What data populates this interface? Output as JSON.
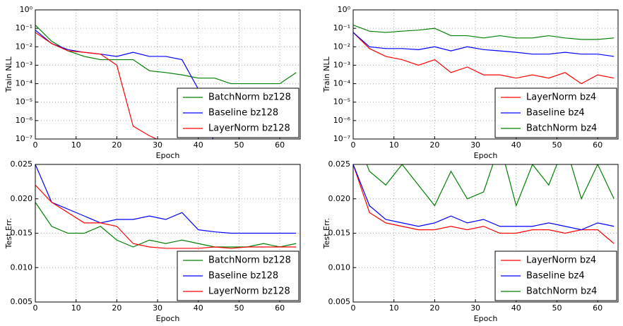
{
  "chart_data": [
    {
      "type": "line",
      "log": true,
      "grid": true,
      "legend": "lower right",
      "xlabel": "Epoch",
      "ylabel": "Train NLL",
      "xlim": [
        0,
        65
      ],
      "xticks": [
        0,
        10,
        20,
        30,
        40,
        50,
        60
      ],
      "ylim": [
        1e-07,
        1
      ],
      "yticks": [
        {
          "value": 1e-07,
          "label": "10⁻⁷"
        },
        {
          "value": 1e-06,
          "label": "10⁻⁶"
        },
        {
          "value": 1e-05,
          "label": "10⁻⁵"
        },
        {
          "value": 0.0001,
          "label": "10⁻⁴"
        },
        {
          "value": 0.001,
          "label": "10⁻³"
        },
        {
          "value": 0.01,
          "label": "10⁻²"
        },
        {
          "value": 0.1,
          "label": "10⁻¹"
        },
        {
          "value": 1,
          "label": "10⁰"
        }
      ],
      "x": [
        0,
        4,
        8,
        12,
        16,
        20,
        24,
        28,
        32,
        36,
        40,
        44,
        48,
        52,
        56,
        60,
        64
      ],
      "series": [
        {
          "name": "BatchNorm bz128",
          "color": "#008000",
          "values": [
            0.15,
            0.02,
            0.006,
            0.003,
            0.002,
            0.002,
            0.002,
            0.0005,
            0.0004,
            0.0003,
            0.0002,
            0.0002,
            0.0001,
            0.0001,
            0.0001,
            0.0001,
            0.0004
          ]
        },
        {
          "name": "Baseline bz128",
          "color": "#0000ff",
          "values": [
            0.08,
            0.015,
            0.007,
            0.005,
            0.004,
            0.003,
            0.005,
            0.003,
            0.003,
            0.002,
            5e-05,
            5e-08,
            null,
            null,
            null,
            null,
            null
          ]
        },
        {
          "name": "LayerNorm bz128",
          "color": "#ff0000",
          "values": [
            0.06,
            0.015,
            0.006,
            0.005,
            0.004,
            0.001,
            5e-07,
            1.5e-07,
            6e-08,
            null,
            null,
            null,
            null,
            null,
            null,
            null,
            null
          ]
        }
      ]
    },
    {
      "type": "line",
      "log": true,
      "grid": true,
      "legend": "lower right",
      "xlabel": "Epoch",
      "ylabel": "Train NLL",
      "xlim": [
        0,
        65
      ],
      "xticks": [
        0,
        10,
        20,
        30,
        40,
        50,
        60
      ],
      "ylim": [
        1e-07,
        1
      ],
      "yticks": [
        {
          "value": 1e-07,
          "label": "10⁻⁷"
        },
        {
          "value": 1e-06,
          "label": "10⁻⁶"
        },
        {
          "value": 1e-05,
          "label": "10⁻⁵"
        },
        {
          "value": 0.0001,
          "label": "10⁻⁴"
        },
        {
          "value": 0.001,
          "label": "10⁻³"
        },
        {
          "value": 0.01,
          "label": "10⁻²"
        },
        {
          "value": 0.1,
          "label": "10⁻¹"
        },
        {
          "value": 1,
          "label": "10⁰"
        }
      ],
      "x": [
        0,
        4,
        8,
        12,
        16,
        20,
        24,
        28,
        32,
        36,
        40,
        44,
        48,
        52,
        56,
        60,
        64
      ],
      "series": [
        {
          "name": "LayerNorm bz4",
          "color": "#ff0000",
          "values": [
            0.06,
            0.008,
            0.003,
            0.002,
            0.001,
            0.002,
            0.0004,
            0.0008,
            0.0003,
            0.0003,
            0.0002,
            0.0003,
            0.0002,
            0.0004,
            0.0001,
            0.0003,
            0.0002
          ]
        },
        {
          "name": "Baseline bz4",
          "color": "#0000ff",
          "values": [
            0.06,
            0.01,
            0.008,
            0.008,
            0.007,
            0.01,
            0.006,
            0.01,
            0.007,
            0.006,
            0.005,
            0.004,
            0.004,
            0.005,
            0.004,
            0.004,
            0.003
          ]
        },
        {
          "name": "BatchNorm bz4",
          "color": "#008000",
          "values": [
            0.15,
            0.07,
            0.06,
            0.07,
            0.08,
            0.1,
            0.04,
            0.04,
            0.03,
            0.04,
            0.03,
            0.03,
            0.04,
            0.03,
            0.025,
            0.025,
            0.03
          ]
        }
      ]
    },
    {
      "type": "line",
      "log": false,
      "grid": true,
      "legend": "lower right",
      "xlabel": "Epoch",
      "ylabel": "Test Err.",
      "xlim": [
        0,
        65
      ],
      "xticks": [
        0,
        10,
        20,
        30,
        40,
        50,
        60
      ],
      "ylim": [
        0.005,
        0.025
      ],
      "yticks": [
        0.005,
        {
          "value": 0.01,
          "label": "0.010"
        },
        0.015,
        {
          "value": 0.02,
          "label": "0.020"
        },
        0.025
      ],
      "x": [
        0,
        4,
        8,
        12,
        16,
        20,
        24,
        28,
        32,
        36,
        40,
        44,
        48,
        52,
        56,
        60,
        64
      ],
      "series": [
        {
          "name": "BatchNorm bz128",
          "color": "#008000",
          "values": [
            0.0195,
            0.016,
            0.015,
            0.015,
            0.016,
            0.014,
            0.013,
            0.014,
            0.0135,
            0.014,
            0.0135,
            0.013,
            0.013,
            0.013,
            0.0135,
            0.013,
            0.0135
          ]
        },
        {
          "name": "Baseline bz128",
          "color": "#0000ff",
          "values": [
            0.025,
            0.0195,
            0.0185,
            0.0175,
            0.0165,
            0.017,
            0.017,
            0.0175,
            0.017,
            0.018,
            0.0155,
            0.0152,
            0.015,
            0.015,
            0.015,
            0.015,
            0.015
          ]
        },
        {
          "name": "LayerNorm bz128",
          "color": "#ff0000",
          "values": [
            0.022,
            0.0195,
            0.018,
            0.0165,
            0.0165,
            0.016,
            0.0135,
            0.013,
            0.0128,
            0.0128,
            0.0128,
            0.013,
            0.0128,
            0.013,
            0.013,
            0.013,
            0.013
          ]
        }
      ]
    },
    {
      "type": "line",
      "log": false,
      "grid": true,
      "legend": "lower right",
      "xlabel": "Epoch",
      "ylabel": "Test Err.",
      "xlim": [
        0,
        65
      ],
      "xticks": [
        0,
        10,
        20,
        30,
        40,
        50,
        60
      ],
      "ylim": [
        0.005,
        0.025
      ],
      "yticks": [
        0.005,
        {
          "value": 0.01,
          "label": "0.010"
        },
        0.015,
        {
          "value": 0.02,
          "label": "0.020"
        },
        0.025
      ],
      "x": [
        0,
        4,
        8,
        12,
        16,
        20,
        24,
        28,
        32,
        36,
        40,
        44,
        48,
        52,
        56,
        60,
        64
      ],
      "series": [
        {
          "name": "LayerNorm bz4",
          "color": "#ff0000",
          "values": [
            0.025,
            0.018,
            0.0165,
            0.016,
            0.0155,
            0.0155,
            0.016,
            0.0155,
            0.016,
            0.015,
            0.015,
            0.0155,
            0.0155,
            0.015,
            0.0155,
            0.0155,
            0.0135
          ]
        },
        {
          "name": "Baseline bz4",
          "color": "#0000ff",
          "values": [
            0.025,
            0.019,
            0.017,
            0.0165,
            0.016,
            0.0165,
            0.0175,
            0.0165,
            0.017,
            0.016,
            0.016,
            0.016,
            0.0165,
            0.016,
            0.0155,
            0.0165,
            0.016
          ]
        },
        {
          "name": "BatchNorm bz4",
          "color": "#008000",
          "values": [
            0.03,
            0.024,
            0.022,
            0.025,
            0.022,
            0.019,
            0.024,
            0.02,
            0.021,
            0.028,
            0.019,
            0.025,
            0.022,
            0.028,
            0.02,
            0.025,
            0.02
          ]
        }
      ]
    }
  ]
}
